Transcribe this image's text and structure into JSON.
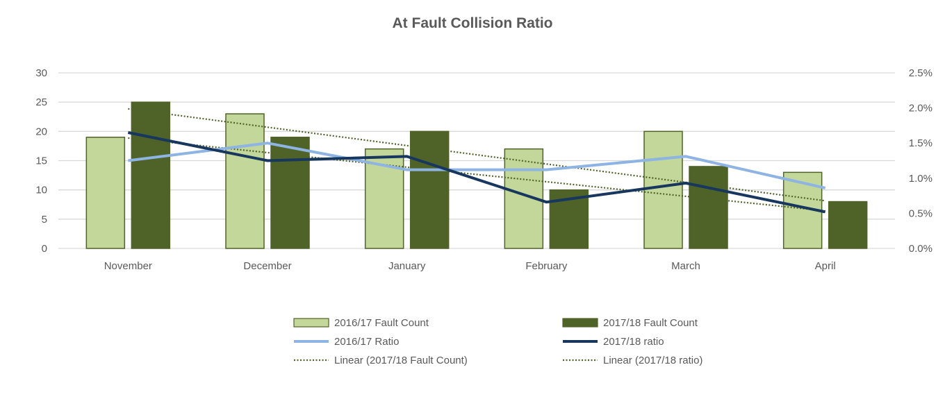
{
  "chart_data": {
    "type": "bar",
    "title": "At Fault Collision Ratio",
    "categories": [
      "November",
      "December",
      "January",
      "February",
      "March",
      "April"
    ],
    "y_left": {
      "min": 0,
      "max": 30,
      "ticks": [
        "0",
        "5",
        "10",
        "15",
        "20",
        "25",
        "30"
      ]
    },
    "y_right": {
      "min": 0,
      "max": 2.5,
      "ticks": [
        "0.0%",
        "0.5%",
        "1.0%",
        "1.5%",
        "2.0%",
        "2.5%"
      ]
    },
    "grid": true,
    "legend_position": "bottom",
    "series": [
      {
        "name": "2016/17 Fault Count",
        "type": "bar",
        "axis": "left",
        "color": "#c4d79b",
        "values": [
          19,
          23,
          17,
          17,
          20,
          13
        ]
      },
      {
        "name": "2017/18 Fault Count",
        "type": "bar",
        "axis": "left",
        "color": "#4f6228",
        "values": [
          25,
          19,
          20,
          10,
          14,
          8
        ]
      },
      {
        "name": "2016/17 Ratio",
        "type": "line",
        "axis": "right",
        "color": "#8db4e2",
        "values": [
          1.25,
          1.5,
          1.12,
          1.12,
          1.31,
          0.86
        ]
      },
      {
        "name": "2017/18 ratio",
        "type": "line",
        "axis": "right",
        "color": "#17375e",
        "values": [
          1.65,
          1.25,
          1.31,
          0.66,
          0.93,
          0.52
        ]
      }
    ],
    "trendlines": [
      {
        "name": "Linear (2017/18 Fault Count)",
        "of": 1,
        "color": "#4f6228"
      },
      {
        "name": "Linear (2017/18 ratio)",
        "of": 3,
        "color": "#4f6228"
      }
    ]
  }
}
